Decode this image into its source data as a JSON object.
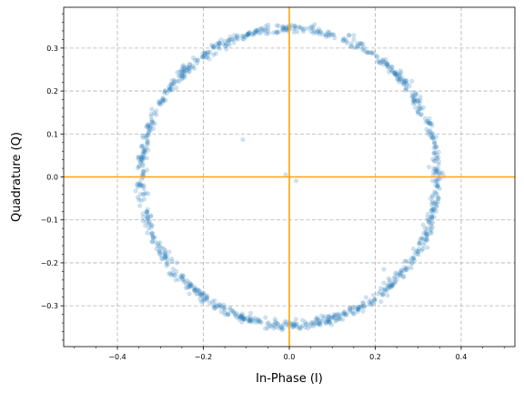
{
  "chart_data": {
    "type": "scatter",
    "title": "",
    "xlabel": "In-Phase (I)",
    "ylabel": "Quadrature (Q)",
    "xlim": [
      -0.525,
      0.525
    ],
    "ylim": [
      -0.395,
      0.395
    ],
    "xticks": [
      -0.4,
      -0.2,
      0.0,
      0.2,
      0.4
    ],
    "xtick_labels": [
      "−0.4",
      "−0.2",
      "0.0",
      "0.2",
      "0.4"
    ],
    "yticks": [
      -0.3,
      -0.2,
      -0.1,
      0.0,
      0.1,
      0.2,
      0.3
    ],
    "ytick_labels": [
      "−0.3",
      "−0.2",
      "−0.1",
      "0.0",
      "0.1",
      "0.2",
      "0.3"
    ],
    "grid": true,
    "grid_style": "dashed",
    "minor_ticks": true,
    "reference_lines": {
      "x": 0.0,
      "y": 0.0,
      "color": "#ffa500"
    },
    "series": [
      {
        "marker_color": "#1f77b4",
        "ring": {
          "center": [
            0.0,
            0.0
          ],
          "radius": 0.345,
          "count": 1000
        },
        "outliers": [
          {
            "x": -0.108,
            "y": 0.087
          },
          {
            "x": -0.008,
            "y": 0.005
          },
          {
            "x": 0.016,
            "y": -0.009
          },
          {
            "x": 0.22,
            "y": -0.215
          }
        ]
      }
    ]
  }
}
